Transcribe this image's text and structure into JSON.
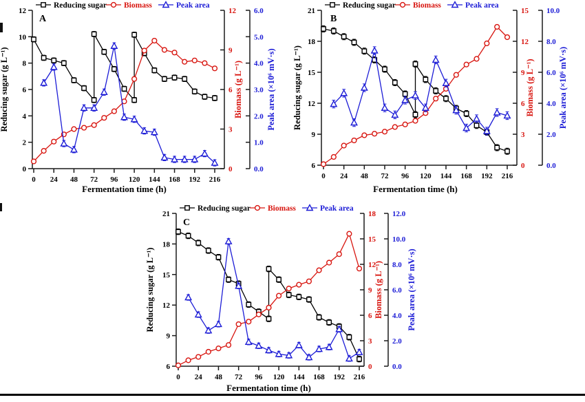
{
  "figure": {
    "background": "#ffffff",
    "page_rule_color": "#000000"
  },
  "colors": {
    "reducing_sugar": "#000000",
    "biomass": "#d8150f",
    "peak_area": "#1c1cd6",
    "axis_line": "#1a1a1a"
  },
  "chart_data": [
    {
      "panel_label": "A",
      "type": "line",
      "xlabel": "Fermentation time (h)",
      "x_range": [
        0,
        216
      ],
      "x_ticks": [
        "0",
        "24",
        "48",
        "72",
        "96",
        "120",
        "144",
        "168",
        "192",
        "216"
      ],
      "axes": {
        "left": {
          "title": "Reducing sugar (g L⁻¹)",
          "min": 0,
          "max": 12,
          "ticks": [
            "0",
            "2",
            "4",
            "6",
            "8",
            "10",
            "12"
          ]
        },
        "biomass": {
          "title": "Biomass (g L⁻¹)",
          "min": 0,
          "max": 12,
          "ticks": [
            "0",
            "3",
            "6",
            "9",
            "12"
          ]
        },
        "peak": {
          "title": "Peak area (×10⁶ mV·s)",
          "min": 0,
          "max": 6,
          "ticks": [
            "0.0",
            "1.0",
            "2.0",
            "3.0",
            "4.0",
            "5.0",
            "6.0"
          ]
        }
      },
      "legend": [
        "Reducing sugar",
        "Biomass",
        "Peak area"
      ],
      "series": [
        {
          "name": "Reducing sugar",
          "key": "reducing_sugar",
          "axis": "left",
          "marker": "square",
          "err": 0.2,
          "x": [
            0,
            12,
            24,
            36,
            48,
            60,
            72,
            72,
            84,
            96,
            108,
            120,
            120,
            132,
            144,
            156,
            168,
            180,
            192,
            204,
            216
          ],
          "y": [
            9.8,
            8.4,
            8.2,
            8.0,
            6.7,
            6.1,
            5.2,
            10.2,
            8.85,
            7.55,
            6.05,
            5.2,
            10.15,
            8.75,
            7.45,
            6.8,
            6.9,
            6.8,
            5.85,
            5.45,
            5.35
          ]
        },
        {
          "name": "Biomass",
          "key": "biomass",
          "axis": "biomass",
          "marker": "circle",
          "err": 0.15,
          "x": [
            0,
            12,
            24,
            36,
            48,
            60,
            72,
            84,
            96,
            108,
            120,
            132,
            144,
            156,
            168,
            180,
            192,
            204,
            216
          ],
          "y": [
            0.55,
            1.35,
            2.05,
            2.6,
            3.0,
            3.1,
            3.3,
            3.85,
            4.35,
            5.1,
            6.8,
            8.95,
            9.7,
            9.0,
            8.8,
            8.1,
            8.2,
            8.0,
            7.6
          ]
        },
        {
          "name": "Peak area",
          "key": "peak_area",
          "axis": "peak",
          "marker": "triangle",
          "err": 0.12,
          "x": [
            12,
            24,
            36,
            48,
            60,
            72,
            84,
            96,
            108,
            120,
            132,
            144,
            156,
            168,
            180,
            192,
            204,
            216
          ],
          "y": [
            3.25,
            3.85,
            0.95,
            0.72,
            2.3,
            2.3,
            2.9,
            4.65,
            1.95,
            1.87,
            1.43,
            1.38,
            0.42,
            0.35,
            0.35,
            0.35,
            0.57,
            0.22
          ]
        }
      ]
    },
    {
      "panel_label": "B",
      "type": "line",
      "xlabel": "Fermentation time (h)",
      "x_range": [
        0,
        216
      ],
      "x_ticks": [
        "0",
        "24",
        "48",
        "72",
        "96",
        "120",
        "144",
        "168",
        "192",
        "216"
      ],
      "axes": {
        "left": {
          "title": "Reducing sugar (g L⁻¹)",
          "min": 6,
          "max": 21,
          "ticks": [
            "6",
            "9",
            "12",
            "15",
            "18",
            "21"
          ]
        },
        "biomass": {
          "title": "Biomass (g L⁻¹)",
          "min": 0,
          "max": 15,
          "ticks": [
            "0",
            "3",
            "6",
            "9",
            "12",
            "15"
          ]
        },
        "peak": {
          "title": "Peak area (×10⁶ mV·s)",
          "min": 0,
          "max": 10,
          "ticks": [
            "0.0",
            "2.0",
            "4.0",
            "6.0",
            "8.0",
            "10.0"
          ]
        }
      },
      "legend": [
        "Reducing sugar",
        "Biomass",
        "Peak area"
      ],
      "series": [
        {
          "name": "Reducing sugar",
          "key": "reducing_sugar",
          "axis": "left",
          "marker": "square",
          "err": 0.3,
          "x": [
            0,
            12,
            24,
            36,
            48,
            60,
            72,
            84,
            96,
            108,
            108,
            120,
            132,
            144,
            156,
            168,
            180,
            192,
            204,
            216
          ],
          "y": [
            19.2,
            19.0,
            18.45,
            17.9,
            17.05,
            16.2,
            15.3,
            14.0,
            12.9,
            10.9,
            15.8,
            14.3,
            13.2,
            12.45,
            11.5,
            11.0,
            9.85,
            9.2,
            7.7,
            7.35
          ]
        },
        {
          "name": "Biomass",
          "key": "biomass",
          "axis": "biomass",
          "marker": "circle",
          "err": 0.2,
          "x": [
            0,
            12,
            24,
            36,
            48,
            60,
            72,
            84,
            96,
            108,
            120,
            132,
            144,
            156,
            168,
            180,
            192,
            204,
            216
          ],
          "y": [
            0.1,
            0.8,
            1.9,
            2.4,
            2.9,
            3.05,
            3.25,
            3.7,
            3.95,
            4.3,
            5.05,
            6.45,
            7.4,
            8.75,
            9.75,
            10.3,
            11.8,
            13.4,
            12.4
          ]
        },
        {
          "name": "Peak area",
          "key": "peak_area",
          "axis": "peak",
          "marker": "triangle",
          "err": 0.25,
          "x": [
            12,
            24,
            36,
            48,
            60,
            72,
            84,
            96,
            108,
            120,
            132,
            144,
            156,
            168,
            180,
            192,
            204,
            216
          ],
          "y": [
            3.95,
            4.65,
            2.75,
            5.0,
            7.4,
            3.7,
            3.25,
            4.2,
            4.5,
            3.7,
            6.8,
            5.3,
            3.55,
            2.4,
            3.0,
            2.2,
            3.4,
            3.2
          ]
        }
      ]
    },
    {
      "panel_label": "C",
      "type": "line",
      "xlabel": "Fermentation time (h)",
      "x_range": [
        0,
        216
      ],
      "x_ticks": [
        "0",
        "24",
        "48",
        "72",
        "96",
        "120",
        "144",
        "168",
        "192",
        "216"
      ],
      "axes": {
        "left": {
          "title": "Reducing sugar (g L⁻¹)",
          "min": 6,
          "max": 21,
          "ticks": [
            "6",
            "9",
            "12",
            "15",
            "18",
            "21"
          ]
        },
        "biomass": {
          "title": "Biomass (g L⁻¹)",
          "min": 0,
          "max": 18,
          "ticks": [
            "0",
            "3",
            "6",
            "9",
            "12",
            "15",
            "18"
          ]
        },
        "peak": {
          "title": "Peak area (×10⁶ mV·s)",
          "min": 0,
          "max": 12,
          "ticks": [
            "0.0",
            "2.0",
            "4.0",
            "6.0",
            "8.0",
            "10.0",
            "12.0"
          ]
        }
      },
      "legend": [
        "Reducing sugar",
        "Biomass",
        "Peak area"
      ],
      "series": [
        {
          "name": "Reducing sugar",
          "key": "reducing_sugar",
          "axis": "left",
          "marker": "square",
          "err": 0.28,
          "x": [
            0,
            12,
            24,
            36,
            48,
            60,
            72,
            84,
            96,
            108,
            108,
            120,
            132,
            144,
            156,
            168,
            180,
            192,
            204,
            216
          ],
          "y": [
            19.2,
            18.8,
            18.1,
            17.35,
            16.7,
            14.5,
            14.1,
            12.05,
            11.35,
            10.65,
            15.55,
            14.5,
            13.0,
            12.8,
            12.55,
            10.8,
            10.3,
            9.9,
            8.85,
            6.7
          ]
        },
        {
          "name": "Biomass",
          "key": "biomass",
          "axis": "biomass",
          "marker": "circle",
          "err": 0.2,
          "x": [
            0,
            12,
            24,
            36,
            48,
            60,
            72,
            84,
            96,
            108,
            120,
            132,
            144,
            156,
            168,
            180,
            192,
            204,
            216
          ],
          "y": [
            0.1,
            0.7,
            1.1,
            1.7,
            2.1,
            2.5,
            4.95,
            5.25,
            6.1,
            6.9,
            8.3,
            9.15,
            9.6,
            10.0,
            11.3,
            12.2,
            13.2,
            15.6,
            11.5
          ]
        },
        {
          "name": "Peak area",
          "key": "peak_area",
          "axis": "peak",
          "marker": "triangle",
          "err": 0.22,
          "x": [
            12,
            24,
            36,
            48,
            60,
            72,
            84,
            96,
            108,
            120,
            132,
            144,
            156,
            168,
            180,
            192,
            204,
            216
          ],
          "y": [
            5.4,
            4.05,
            2.8,
            3.3,
            9.8,
            6.3,
            1.9,
            1.6,
            1.25,
            0.95,
            0.85,
            1.65,
            0.7,
            1.35,
            1.5,
            2.9,
            0.6,
            1.1
          ]
        }
      ]
    }
  ]
}
